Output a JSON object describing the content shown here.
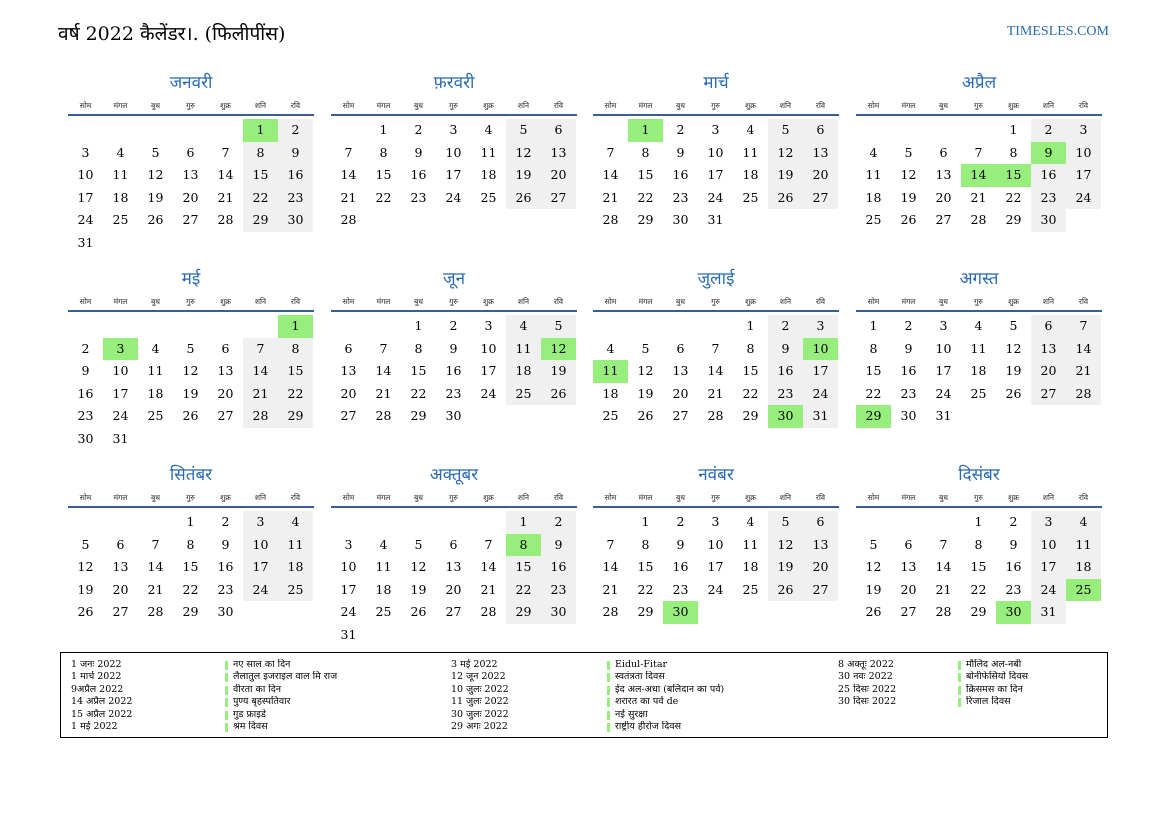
{
  "header": {
    "title": "वर्ष 2022 कैलेंडर।. (फिलीपींस)",
    "site": "TIMESLES.COM"
  },
  "weekdays": [
    "सोम",
    "मंगल",
    "बुध",
    "गुरु",
    "शुक्र",
    "शनि",
    "रवि"
  ],
  "colors": {
    "accent": "#2a6ab0",
    "holiday": "#97ee7d",
    "weekend": "#f0f0f0",
    "rule": "#35608f"
  },
  "months": [
    {
      "name": "जनवरी",
      "offset": 5,
      "days": 31,
      "holidays": [
        1
      ]
    },
    {
      "name": "फ़रवरी",
      "offset": 1,
      "days": 28,
      "holidays": []
    },
    {
      "name": "मार्च",
      "offset": 1,
      "days": 31,
      "holidays": [
        1
      ]
    },
    {
      "name": "अप्रैल",
      "offset": 4,
      "days": 30,
      "holidays": [
        9,
        14,
        15
      ]
    },
    {
      "name": "मई",
      "offset": 6,
      "days": 31,
      "holidays": [
        1,
        3
      ]
    },
    {
      "name": "जून",
      "offset": 2,
      "days": 30,
      "holidays": [
        12
      ]
    },
    {
      "name": "जुलाई",
      "offset": 4,
      "days": 31,
      "holidays": [
        10,
        11,
        30
      ]
    },
    {
      "name": "अगस्त",
      "offset": 0,
      "days": 31,
      "holidays": [
        29
      ]
    },
    {
      "name": "सितंबर",
      "offset": 3,
      "days": 30,
      "holidays": []
    },
    {
      "name": "अक्तूबर",
      "offset": 5,
      "days": 31,
      "holidays": [
        8
      ]
    },
    {
      "name": "नवंबर",
      "offset": 1,
      "days": 30,
      "holidays": [
        30
      ]
    },
    {
      "name": "दिसंबर",
      "offset": 3,
      "days": 31,
      "holidays": [
        25,
        30
      ]
    }
  ],
  "legend": [
    [
      {
        "date": "1 जनः 2022",
        "name": "नए साल का दिन"
      },
      {
        "date": "1 मार्च 2022",
        "name": "लैलातुल इजराइल वाल मि राज"
      },
      {
        "date": "9अप्रैल 2022",
        "name": "वीरता का दिन"
      },
      {
        "date": "14 अप्रैल 2022",
        "name": "पुण्य बृहस्पतिवार"
      },
      {
        "date": "15 अप्रैल 2022",
        "name": "गुड फ्राइडे"
      },
      {
        "date": "1 मई 2022",
        "name": "श्रम दिवस"
      }
    ],
    [
      {
        "date": "3 मई 2022",
        "name": "Eidul-Fitar"
      },
      {
        "date": "12 जून 2022",
        "name": "स्वतंत्रता दिवस"
      },
      {
        "date": "10 जुलः 2022",
        "name": "ईद अल-अधा (बलिदान का पर्व)"
      },
      {
        "date": "11 जुलः 2022",
        "name": "शरारत का पर्व de"
      },
      {
        "date": "30 जुलः 2022",
        "name": "नई सुरक्षा"
      },
      {
        "date": "29 अगः 2022",
        "name": "राष्ट्रीय हीरोज दिवस"
      }
    ],
    [
      {
        "date": "8 अक्तूः 2022",
        "name": "मौलिद अल-नबी"
      },
      {
        "date": "30 नवः 2022",
        "name": "बोनीफेसियो दिवस"
      },
      {
        "date": "25 दिसः 2022",
        "name": "क्रिसमस का दिन"
      },
      {
        "date": "30 दिसः 2022",
        "name": "रिजाल दिवस"
      }
    ]
  ]
}
